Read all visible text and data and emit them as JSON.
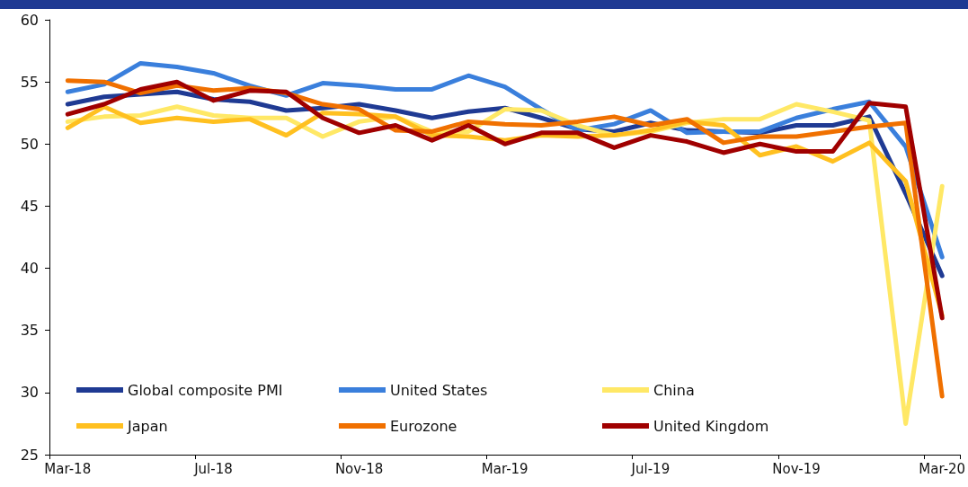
{
  "chart_data": {
    "type": "line",
    "categories": [
      "Mar-18",
      null,
      null,
      null,
      "Jul-18",
      null,
      null,
      null,
      "Nov-18",
      null,
      null,
      null,
      "Mar-19",
      null,
      null,
      null,
      "Jul-19",
      null,
      null,
      null,
      "Nov-19",
      null,
      null,
      null,
      "Mar-20"
    ],
    "series": [
      {
        "name": "Global composite PMI",
        "color": "#1f3a93",
        "values": [
          53.2,
          53.8,
          54.0,
          54.2,
          53.6,
          53.4,
          52.7,
          52.9,
          53.2,
          52.7,
          52.1,
          52.6,
          52.9,
          52.1,
          51.2,
          51.0,
          51.7,
          51.1,
          51.0,
          50.9,
          51.5,
          51.5,
          52.2,
          46.0,
          39.4
        ]
      },
      {
        "name": "United States",
        "color": "#3a7fdc",
        "values": [
          54.2,
          54.8,
          56.5,
          56.2,
          55.7,
          54.7,
          53.9,
          54.9,
          54.7,
          54.4,
          54.4,
          55.5,
          54.6,
          52.8,
          51.1,
          51.6,
          52.7,
          50.9,
          51.0,
          51.0,
          52.1,
          52.8,
          53.4,
          49.8,
          40.9
        ]
      },
      {
        "name": "China",
        "color": "#ffe866",
        "values": [
          51.8,
          52.2,
          52.3,
          53.0,
          52.3,
          52.1,
          52.1,
          50.6,
          51.8,
          52.2,
          51.0,
          51.0,
          52.8,
          52.7,
          51.5,
          50.7,
          51.0,
          51.7,
          52.0,
          52.0,
          53.2,
          52.6,
          51.9,
          27.5,
          46.6
        ]
      },
      {
        "name": "Japan",
        "color": "#ffc020",
        "values": [
          51.3,
          53.0,
          51.7,
          52.1,
          51.8,
          52.0,
          50.7,
          52.5,
          52.4,
          52.2,
          50.7,
          50.6,
          50.3,
          50.7,
          50.6,
          50.7,
          51.1,
          51.8,
          51.5,
          49.1,
          49.8,
          48.6,
          50.1,
          47.0,
          36.2
        ]
      },
      {
        "name": "Eurozone",
        "color": "#f07000",
        "values": [
          55.1,
          55.0,
          54.1,
          54.7,
          54.3,
          54.5,
          54.1,
          53.2,
          52.8,
          51.1,
          51.0,
          51.8,
          51.6,
          51.5,
          51.8,
          52.2,
          51.5,
          52.0,
          50.1,
          50.6,
          50.6,
          51.0,
          51.4,
          51.7,
          29.7
        ]
      },
      {
        "name": "United Kingdom",
        "color": "#a00000",
        "values": [
          52.4,
          53.2,
          54.4,
          55.0,
          53.5,
          54.3,
          54.2,
          52.1,
          50.9,
          51.5,
          50.3,
          51.5,
          50.0,
          50.9,
          50.9,
          49.7,
          50.7,
          50.2,
          49.3,
          50.0,
          49.4,
          49.4,
          53.3,
          53.0,
          36.0
        ]
      }
    ],
    "ylim": [
      25,
      60
    ],
    "yticks": [
      25,
      30,
      35,
      40,
      45,
      50,
      55,
      60
    ],
    "grid": false,
    "legend": "bottom left",
    "marker": "none",
    "line_style": "solid"
  }
}
